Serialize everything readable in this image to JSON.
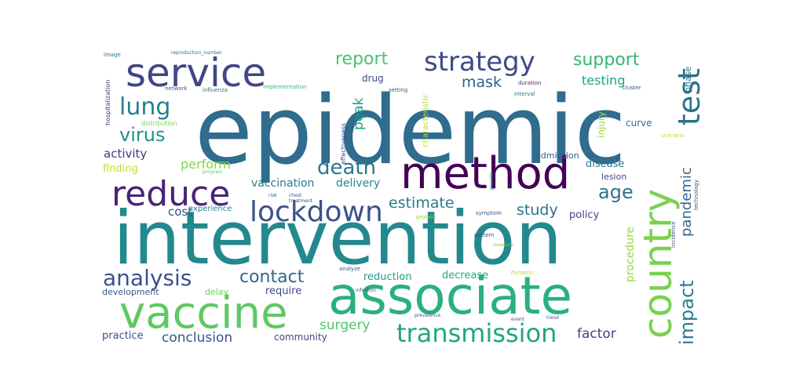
{
  "words": [
    {
      "text": "epidemic",
      "color": "#2f6c8e"
    },
    {
      "text": "intervention",
      "color": "#23898e"
    },
    {
      "text": "associate",
      "color": "#2ab07f"
    },
    {
      "text": "method",
      "color": "#440154"
    },
    {
      "text": "vaccine",
      "color": "#5ec962"
    },
    {
      "text": "country",
      "color": "#7ad151"
    },
    {
      "text": "service",
      "color": "#404688"
    },
    {
      "text": "reduce",
      "color": "#482475"
    },
    {
      "text": "lockdown",
      "color": "#3b528b"
    },
    {
      "text": "strategy",
      "color": "#3e4a89"
    },
    {
      "text": "test",
      "color": "#2c728e"
    },
    {
      "text": "transmission",
      "color": "#21a585"
    },
    {
      "text": "lung",
      "color": "#27808e"
    },
    {
      "text": "death",
      "color": "#2a788e"
    },
    {
      "text": "analysis",
      "color": "#3b518b"
    },
    {
      "text": "impact",
      "color": "#287c8e"
    },
    {
      "text": "virus",
      "color": "#20938c"
    },
    {
      "text": "contact",
      "color": "#31688e"
    },
    {
      "text": "report",
      "color": "#4ac16d"
    },
    {
      "text": "support",
      "color": "#35b779"
    },
    {
      "text": "age",
      "color": "#2e6f8e"
    },
    {
      "text": "pandemic",
      "color": "#31678e"
    },
    {
      "text": "estimate",
      "color": "#297a8e"
    },
    {
      "text": "study",
      "color": "#2c718e"
    },
    {
      "text": "mask",
      "color": "#33628d"
    },
    {
      "text": "testing",
      "color": "#1fa187"
    },
    {
      "text": "surgery",
      "color": "#50c46a"
    },
    {
      "text": "conclusion",
      "color": "#3b528b"
    },
    {
      "text": "factor",
      "color": "#414487"
    },
    {
      "text": "perform",
      "color": "#84d44b"
    },
    {
      "text": "peak",
      "color": "#1fa088"
    },
    {
      "text": "activity",
      "color": "#443983"
    },
    {
      "text": "cost",
      "color": "#3e4c8a"
    },
    {
      "text": "finding",
      "color": "#bddf26"
    },
    {
      "text": "vaccination",
      "color": "#2a788e"
    },
    {
      "text": "delivery",
      "color": "#23888e"
    },
    {
      "text": "procedure",
      "color": "#9bd93c"
    },
    {
      "text": "policy",
      "color": "#3f4788"
    },
    {
      "text": "disease",
      "color": "#2a768e"
    },
    {
      "text": "reduction",
      "color": "#1f9e89"
    },
    {
      "text": "decrease",
      "color": "#22a884"
    },
    {
      "text": "require",
      "color": "#3f4889"
    },
    {
      "text": "practice",
      "color": "#3b528b"
    },
    {
      "text": "community",
      "color": "#404688"
    },
    {
      "text": "drug",
      "color": "#414487"
    },
    {
      "text": "injury",
      "color": "#a2da37"
    },
    {
      "text": "curve",
      "color": "#2d708e"
    },
    {
      "text": "phase",
      "color": "#2b748e"
    },
    {
      "text": "admission",
      "color": "#33638d"
    },
    {
      "text": "lesion",
      "color": "#3e4a89"
    },
    {
      "text": "development",
      "color": "#39568c"
    },
    {
      "text": "delay",
      "color": "#6ccd5a"
    },
    {
      "text": "experience",
      "color": "#26828e"
    },
    {
      "text": "characteristic",
      "color": "#bddf26"
    },
    {
      "text": "effectiveness",
      "color": "#3d4d8a"
    },
    {
      "text": "hospitalization",
      "color": "#46337e"
    },
    {
      "text": "distribution",
      "color": "#7ad151"
    },
    {
      "text": "influenza",
      "color": "#2d708e"
    },
    {
      "text": "network",
      "color": "#3b528b"
    },
    {
      "text": "implementation",
      "color": "#35b779"
    },
    {
      "text": "setting",
      "color": "#39568c"
    },
    {
      "text": "duration",
      "color": "#472d7b"
    },
    {
      "text": "interval",
      "color": "#2a768e"
    },
    {
      "text": "cluster",
      "color": "#3b528b"
    },
    {
      "text": "scenario",
      "color": "#b5de2b"
    },
    {
      "text": "incidence",
      "color": "#3b528b"
    },
    {
      "text": "technology",
      "color": "#3b528b"
    },
    {
      "text": "image",
      "color": "#2a788e"
    },
    {
      "text": "reproduction_number",
      "color": "#2c728e"
    },
    {
      "text": "protein",
      "color": "#8fd744"
    },
    {
      "text": "symptom",
      "color": "#3b528b"
    },
    {
      "text": "pattern",
      "color": "#3e4c8a"
    },
    {
      "text": "analyze",
      "color": "#3b528b"
    },
    {
      "text": "dynamic",
      "color": "#b5de2b"
    },
    {
      "text": "provide",
      "color": "#2a788e"
    },
    {
      "text": "infection",
      "color": "#3b528b"
    },
    {
      "text": "treatment",
      "color": "#3e4c8a"
    },
    {
      "text": "program",
      "color": "#5ec962"
    },
    {
      "text": "risk",
      "color": "#3b528b"
    },
    {
      "text": "chest",
      "color": "#3b528b"
    },
    {
      "text": "measure",
      "color": "#7ad151"
    },
    {
      "text": "prevalence",
      "color": "#3e4c8a"
    },
    {
      "text": "event",
      "color": "#3b528b"
    },
    {
      "text": "trend",
      "color": "#3b528b"
    }
  ]
}
